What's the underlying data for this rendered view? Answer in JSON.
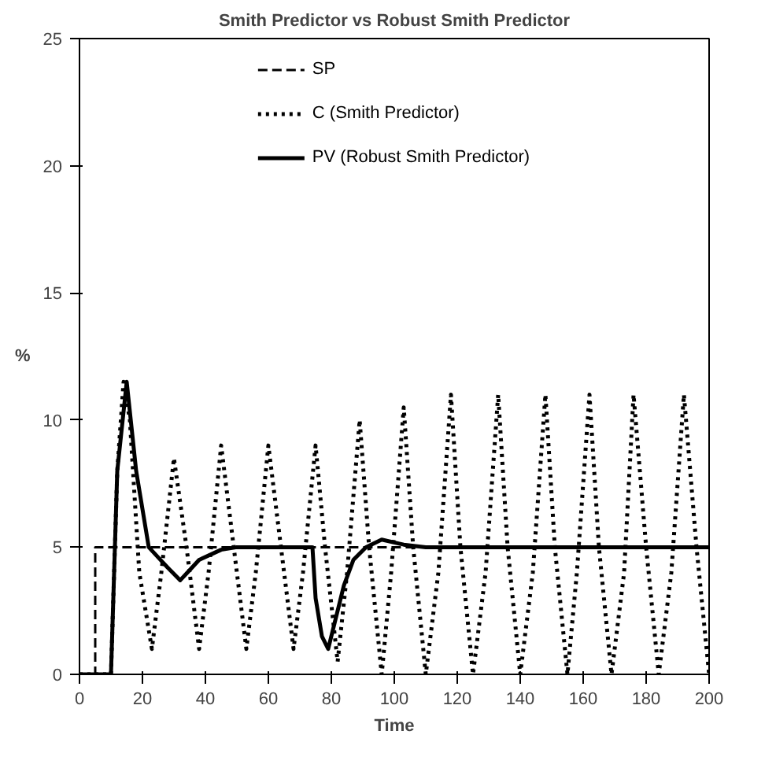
{
  "chart_data": {
    "type": "line",
    "title": "Smith Predictor vs Robust Smith Predictor",
    "xlabel": "Time",
    "ylabel": "%",
    "xlim": [
      0,
      200
    ],
    "xticks": [
      0,
      20,
      40,
      60,
      80,
      100,
      120,
      140,
      160,
      180,
      200
    ],
    "ylim": [
      0,
      25
    ],
    "yticks": [
      0,
      5,
      10,
      15,
      20,
      25
    ],
    "grid": false,
    "legend": "top",
    "marker": "none",
    "series": [
      {
        "name": "SP",
        "color": "#000000",
        "line_style": "dashed",
        "x": [
          0,
          5,
          5,
          200
        ],
        "values": [
          0,
          0,
          5,
          5
        ]
      },
      {
        "name": "C (Smith Predictor)",
        "color": "#000000",
        "line_style": "dotted",
        "x": [
          0,
          10,
          12,
          14,
          16,
          19,
          23,
          26,
          30,
          34,
          38,
          41,
          45,
          49,
          53,
          56,
          60,
          64,
          68,
          71,
          75,
          78,
          82,
          85,
          89,
          92,
          96,
          99,
          103,
          106,
          110,
          114,
          118,
          121,
          125,
          129,
          133,
          136,
          140,
          144,
          148,
          151,
          155,
          158,
          162,
          165,
          169,
          173,
          176,
          180,
          184,
          188,
          192,
          196,
          200
        ],
        "values": [
          0,
          0,
          8,
          11.5,
          10,
          4,
          1,
          4,
          8.5,
          5,
          1,
          4,
          9,
          5,
          1,
          4,
          9,
          5,
          1,
          4,
          9,
          5,
          0.5,
          4,
          10,
          5,
          0,
          4,
          10.5,
          5,
          0,
          4,
          11,
          5,
          0,
          4,
          11,
          5,
          0,
          4,
          11,
          5,
          0,
          4,
          11,
          5,
          0,
          4,
          11,
          5,
          0,
          4,
          11,
          5,
          0
        ]
      },
      {
        "name": "PV (Robust Smith Predictor)",
        "color": "#000000",
        "line_style": "solid",
        "x": [
          0,
          10,
          12,
          15,
          18,
          22,
          25,
          28,
          32,
          35,
          38,
          45,
          50,
          74,
          75,
          77,
          79,
          81,
          84,
          87,
          91,
          96,
          103,
          110,
          200
        ],
        "values": [
          0,
          0,
          8,
          11.5,
          8,
          5,
          4.6,
          4.2,
          3.7,
          4.1,
          4.5,
          4.9,
          5,
          5,
          3,
          1.5,
          1,
          2,
          3.5,
          4.5,
          5,
          5.3,
          5.1,
          5,
          5
        ]
      }
    ]
  }
}
